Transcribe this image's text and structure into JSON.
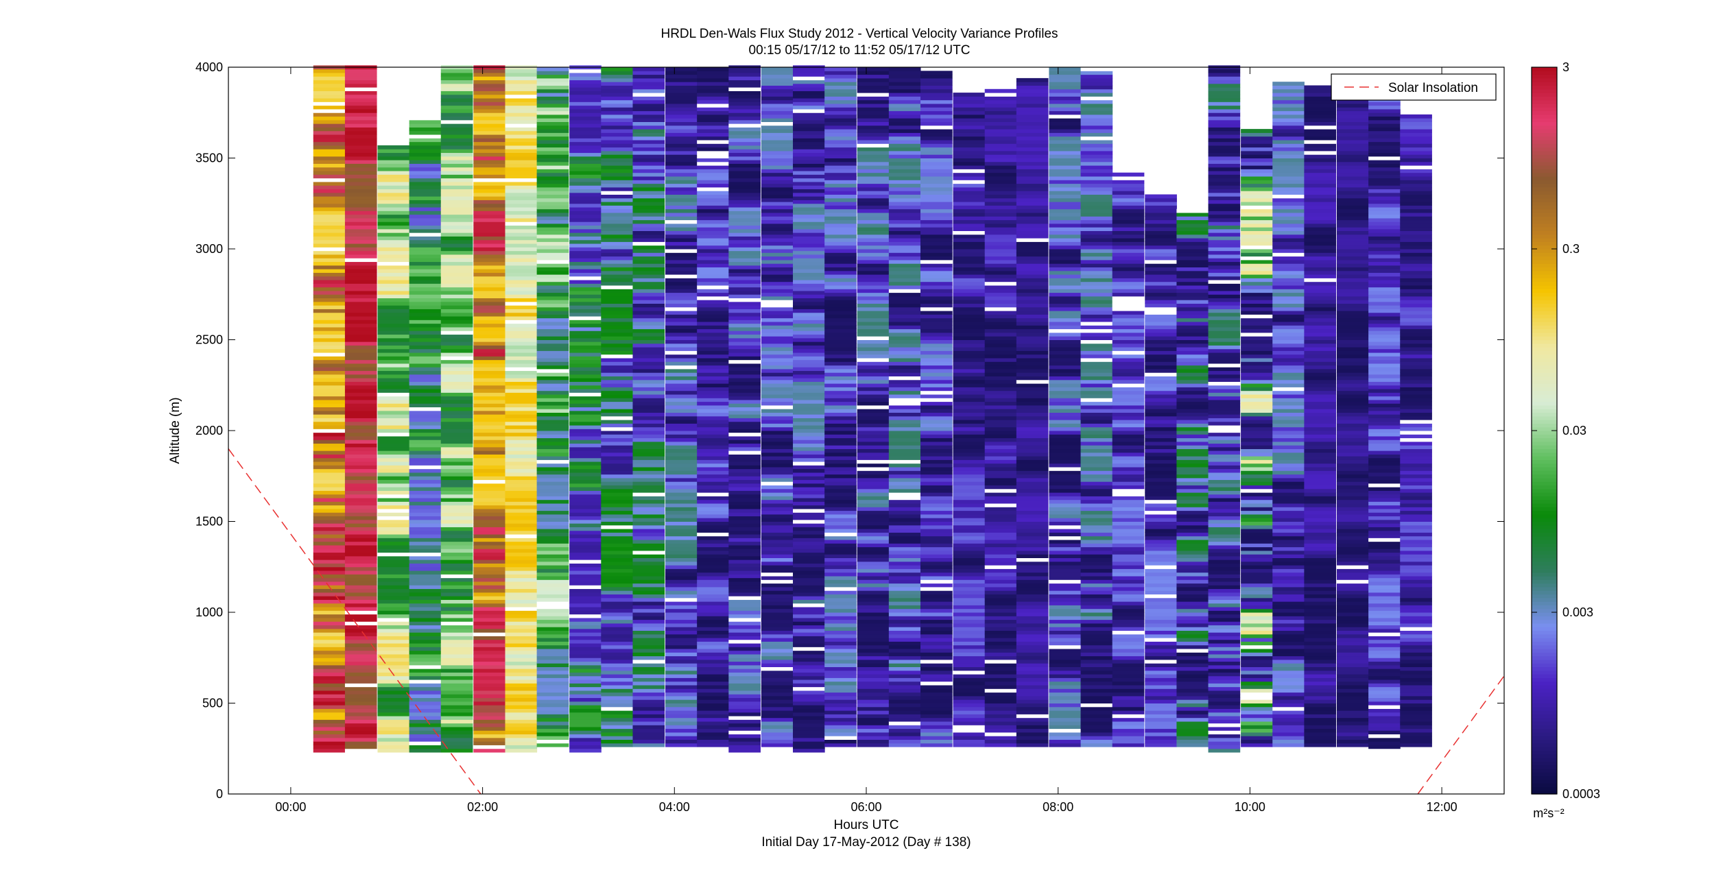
{
  "chart_data": {
    "type": "heatmap",
    "title": "HRDL Den-Wals Flux Study 2012 - Vertical Velocity Variance Profiles",
    "subtitle": "00:15 05/17/12 to 11:52 05/17/12  UTC",
    "xlabel": "Hours UTC",
    "xlabel2": "Initial Day 17-May-2012 (Day # 138)",
    "ylabel": "Altitude (m)",
    "xlim": [
      -0.65,
      12.65
    ],
    "ylim": [
      0,
      4000
    ],
    "x_ticks": [
      {
        "value": 0,
        "label": "00:00"
      },
      {
        "value": 2,
        "label": "02:00"
      },
      {
        "value": 4,
        "label": "04:00"
      },
      {
        "value": 6,
        "label": "06:00"
      },
      {
        "value": 8,
        "label": "08:00"
      },
      {
        "value": 10,
        "label": "10:00"
      },
      {
        "value": 12,
        "label": "12:00"
      }
    ],
    "y_ticks": [
      {
        "value": 0,
        "label": "0"
      },
      {
        "value": 500,
        "label": "500"
      },
      {
        "value": 1000,
        "label": "1000"
      },
      {
        "value": 1500,
        "label": "1500"
      },
      {
        "value": 2000,
        "label": "2000"
      },
      {
        "value": 2500,
        "label": "2500"
      },
      {
        "value": 3000,
        "label": "3000"
      },
      {
        "value": 3500,
        "label": "3500"
      },
      {
        "value": 4000,
        "label": "4000"
      }
    ],
    "colorbar": {
      "scale": "log",
      "range": [
        0.0003,
        3
      ],
      "unit": "m²s⁻²",
      "ticks": [
        {
          "value": 3,
          "label": "3"
        },
        {
          "value": 0.3,
          "label": "0.3"
        },
        {
          "value": 0.03,
          "label": "0.03"
        },
        {
          "value": 0.003,
          "label": "0.003"
        },
        {
          "value": 0.0003,
          "label": "0.0003"
        }
      ],
      "colors": [
        "#0a0a40",
        "#2a1a80",
        "#4b22c4",
        "#7a8ff0",
        "#2e7d5c",
        "#0a8a0a",
        "#5fbf5f",
        "#d8ecd4",
        "#f0e8a0",
        "#f5c400",
        "#c08020",
        "#8a5a30",
        "#e63c70",
        "#b20c1e"
      ]
    },
    "legend": {
      "label": "Solar Insolation",
      "position": "top-right",
      "color": "#e83030"
    },
    "profiles": {
      "bin_height_m": 20,
      "altitude_range_m": [
        230,
        4000
      ],
      "times_h": [
        0.4,
        0.73,
        1.07,
        1.4,
        1.73,
        2.07,
        2.4,
        2.73,
        3.07,
        3.4,
        3.73,
        4.07,
        4.4,
        4.73,
        5.07,
        5.4,
        5.73,
        6.07,
        6.4,
        6.73,
        7.07,
        7.4,
        7.73,
        8.07,
        8.4,
        8.73,
        9.07,
        9.4,
        9.73,
        10.07,
        10.4,
        10.73,
        11.07,
        11.4,
        11.73
      ],
      "log10_variance_min": [
        -1.0,
        -0.2,
        -2.2,
        -2.8,
        -2.3,
        -0.9,
        -1.5,
        -2.6,
        -3.1,
        -3.2,
        -3.3,
        -3.4,
        -3.4,
        -3.4,
        -3.4,
        -3.4,
        -3.4,
        -3.4,
        -3.4,
        -3.4,
        -3.4,
        -3.4,
        -3.4,
        -3.4,
        -3.4,
        -3.4,
        -3.4,
        -3.4,
        -3.4,
        -3.4,
        -3.4,
        -3.4,
        -3.4,
        -3.4,
        -3.4
      ],
      "log10_variance_max": [
        0.5,
        0.5,
        -0.9,
        -1.6,
        -1.1,
        0.4,
        -0.7,
        -1.3,
        -1.8,
        -1.9,
        -2.0,
        -2.3,
        -2.6,
        -2.4,
        -2.4,
        -2.4,
        -2.4,
        -2.3,
        -2.3,
        -2.5,
        -2.7,
        -2.8,
        -2.9,
        -2.4,
        -2.3,
        -2.6,
        -2.6,
        -2.0,
        -2.2,
        -1.0,
        -2.4,
        -2.9,
        -3.0,
        -2.6,
        -2.7
      ],
      "top_of_data_m": [
        4000,
        4000,
        3560,
        3720,
        4000,
        4000,
        4000,
        4000,
        4000,
        4000,
        4000,
        4000,
        4000,
        4000,
        4000,
        4000,
        4000,
        4000,
        4000,
        3980,
        3860,
        3880,
        3940,
        4000,
        4000,
        3420,
        3300,
        3220,
        4000,
        3660,
        3920,
        3900,
        3880,
        3820,
        3740
      ],
      "bottom_of_data_m": [
        230,
        230,
        230,
        230,
        230,
        230,
        230,
        260,
        230,
        260,
        260,
        260,
        260,
        230,
        260,
        230,
        260,
        260,
        260,
        260,
        260,
        260,
        260,
        260,
        260,
        260,
        260,
        260,
        230,
        260,
        260,
        260,
        260,
        230,
        260
      ]
    },
    "solar_insolation": [
      {
        "x": -0.65,
        "y": 1900
      },
      {
        "x": 1.98,
        "y": 0
      },
      {
        "x": 11.75,
        "y": 0
      },
      {
        "x": 12.65,
        "y": 650
      }
    ]
  }
}
